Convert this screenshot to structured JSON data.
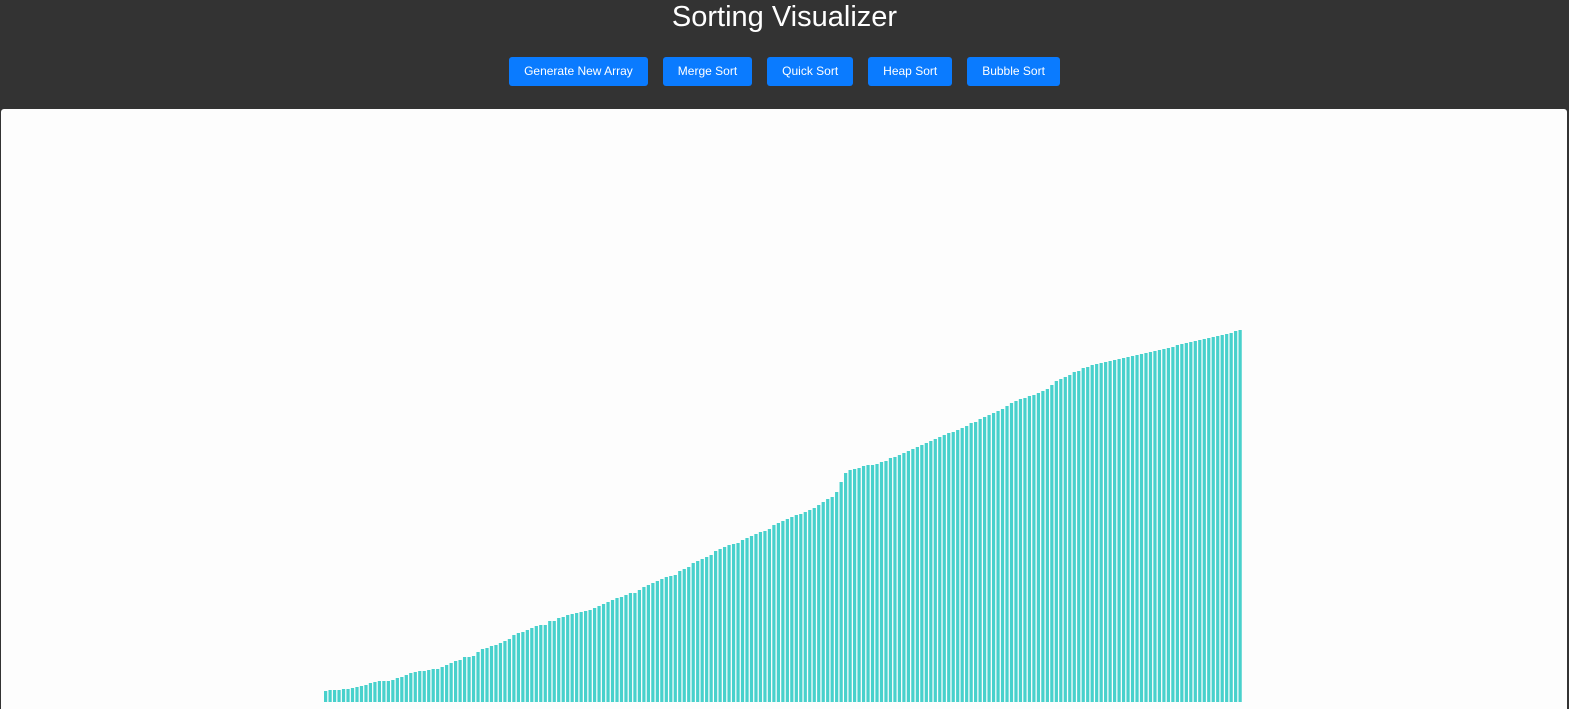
{
  "app": {
    "title": "Sorting Visualizer"
  },
  "toolbar": {
    "buttons": [
      {
        "id": "generate",
        "label": "Generate New Array"
      },
      {
        "id": "merge",
        "label": "Merge Sort"
      },
      {
        "id": "quick",
        "label": "Quick Sort"
      },
      {
        "id": "heap",
        "label": "Heap Sort"
      },
      {
        "id": "bubble",
        "label": "Bubble Sort"
      }
    ],
    "button_color": "#0a7bff"
  },
  "colors": {
    "header_bg": "#333333",
    "bar": "#48d1cc"
  },
  "chart_data": {
    "type": "bar",
    "series": [
      {
        "values": [
          11,
          12,
          12,
          12,
          13,
          13,
          14,
          15,
          16,
          17,
          19,
          20,
          21,
          21,
          21,
          22,
          24,
          25,
          27,
          29,
          30,
          31,
          31,
          32,
          33,
          33,
          35,
          37,
          39,
          41,
          42,
          45,
          45,
          46,
          50,
          53,
          54,
          56,
          57,
          59,
          61,
          63,
          67,
          69,
          70,
          72,
          74,
          76,
          77,
          77,
          81,
          81,
          84,
          85,
          87,
          88,
          89,
          90,
          91,
          92,
          94,
          96,
          98,
          100,
          102,
          104,
          105,
          107,
          109,
          109,
          112,
          115,
          117,
          119,
          121,
          123,
          125,
          126,
          127,
          131,
          133,
          135,
          139,
          141,
          143,
          145,
          147,
          151,
          153,
          155,
          157,
          158,
          159,
          162,
          164,
          166,
          168,
          170,
          171,
          173,
          177,
          179,
          181,
          183,
          185,
          187,
          188,
          190,
          192,
          194,
          197,
          200,
          203,
          205,
          210,
          220,
          229,
          232,
          233,
          234,
          236,
          237,
          237,
          238,
          240,
          241,
          244,
          245,
          247,
          249,
          251,
          253,
          255,
          257,
          259,
          261,
          263,
          265,
          267,
          269,
          270,
          272,
          274,
          276,
          279,
          280,
          283,
          285,
          287,
          289,
          291,
          293,
          296,
          299,
          301,
          303,
          304,
          306,
          307,
          309,
          311,
          313,
          317,
          321,
          323,
          325,
          327,
          330,
          331,
          334,
          335,
          337,
          338,
          339,
          340,
          341,
          342,
          343,
          344,
          345,
          346,
          347,
          348,
          349,
          350,
          351,
          352,
          353,
          354,
          355,
          357,
          358,
          359,
          360,
          361,
          362,
          363,
          364,
          365,
          366,
          367,
          368,
          369,
          371,
          372
        ]
      }
    ]
  }
}
